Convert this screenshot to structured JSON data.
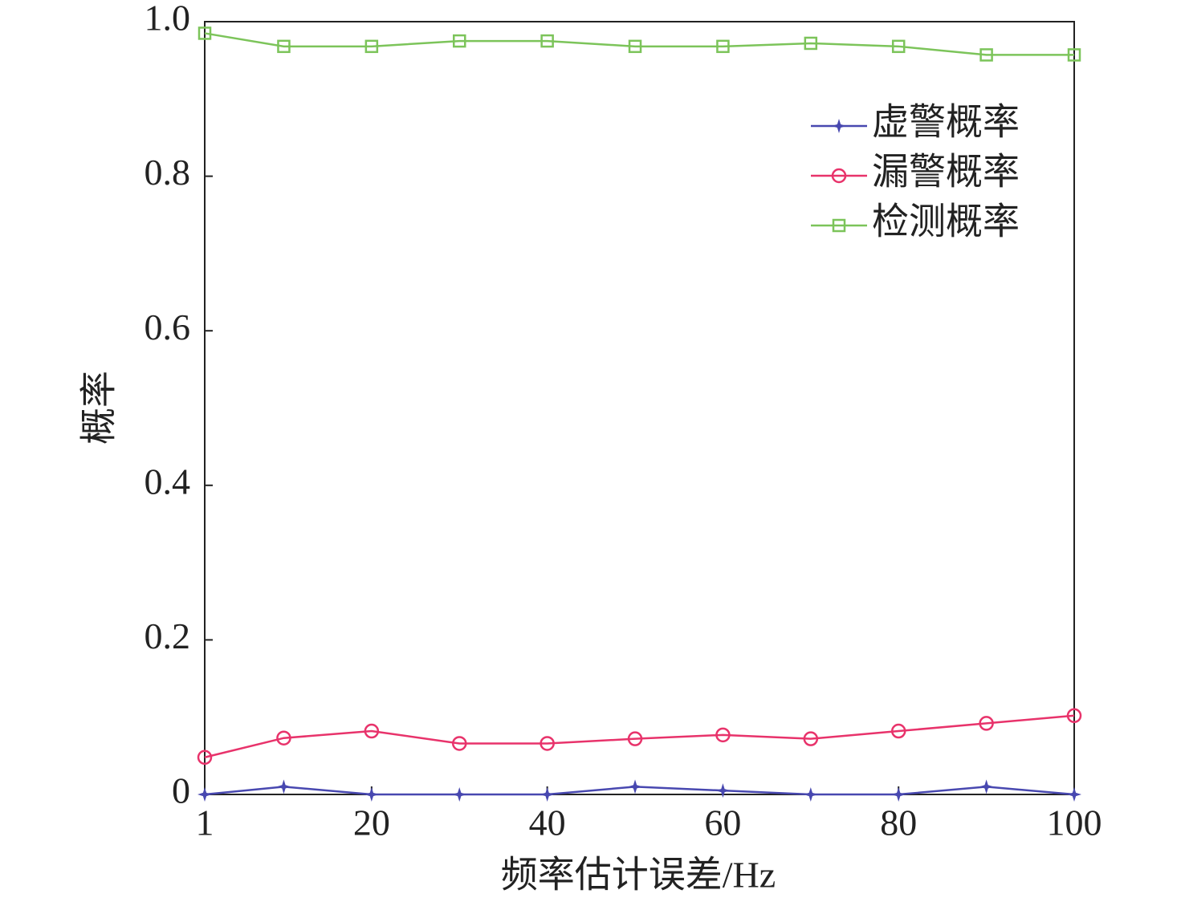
{
  "chart_data": {
    "type": "line",
    "x_label": "频率估计误差/Hz",
    "y_label": "概率",
    "x": [
      1,
      10,
      20,
      30,
      40,
      50,
      60,
      70,
      80,
      90,
      100
    ],
    "series": [
      {
        "name": "虚警概率",
        "color": "#4848b0",
        "marker": "star",
        "values": [
          0,
          0.01,
          0,
          0,
          0,
          0.01,
          0.005,
          0,
          0,
          0.01,
          0
        ]
      },
      {
        "name": "漏警概率",
        "color": "#e8336b",
        "marker": "circle",
        "values": [
          0.048,
          0.073,
          0.082,
          0.066,
          0.066,
          0.072,
          0.077,
          0.072,
          0.082,
          0.092,
          0.102
        ]
      },
      {
        "name": "检测概率",
        "color": "#7cc45a",
        "marker": "square",
        "values": [
          0.985,
          0.968,
          0.968,
          0.975,
          0.975,
          0.968,
          0.968,
          0.972,
          0.968,
          0.957,
          0.957
        ]
      }
    ],
    "xlim": [
      1,
      100
    ],
    "xticks": [
      1,
      20,
      40,
      60,
      80,
      100
    ],
    "ylim": [
      0,
      1
    ],
    "yticks": [
      0,
      0.2,
      0.4,
      0.6,
      0.8,
      {
        "value": 1,
        "label": "1.0"
      }
    ],
    "legend": "upper-right"
  }
}
